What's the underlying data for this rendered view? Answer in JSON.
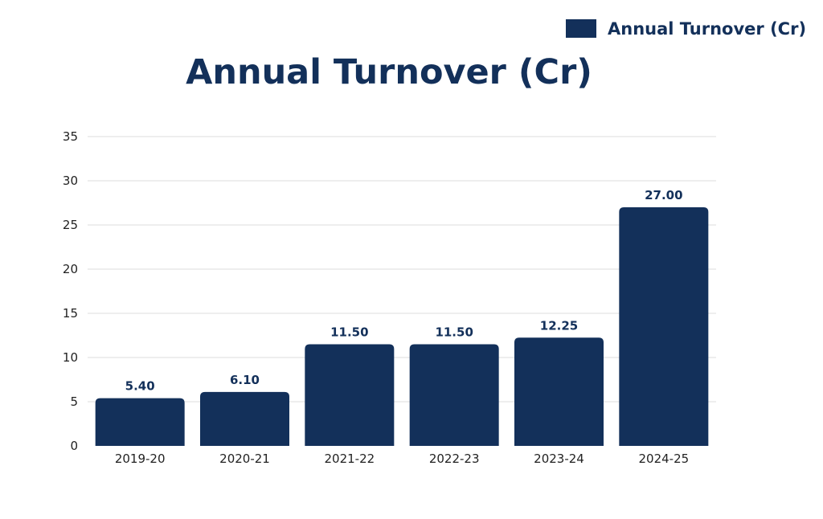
{
  "chart_data": {
    "type": "bar",
    "title": "Annual Turnover (Cr)",
    "xlabel": "",
    "ylabel": "",
    "categories": [
      "2019-20",
      "2020-21",
      "2021-22",
      "2022-23",
      "2023-24",
      "2024-25"
    ],
    "series": [
      {
        "name": "Annual Turnover (Cr)",
        "values": [
          5.4,
          6.1,
          11.5,
          11.5,
          12.25,
          27.0
        ],
        "labels": [
          "5.40",
          "6.10",
          "11.50",
          "11.50",
          "12.25",
          "27.00"
        ]
      }
    ],
    "ylim": [
      0,
      35
    ],
    "yticks": [
      0,
      5,
      10,
      15,
      20,
      25,
      30,
      35
    ],
    "grid": true,
    "legend": "top-right",
    "colors": {
      "bar": "#13305a",
      "text": "#13305a",
      "axis_text": "#222222",
      "grid": "#dddddd"
    }
  }
}
